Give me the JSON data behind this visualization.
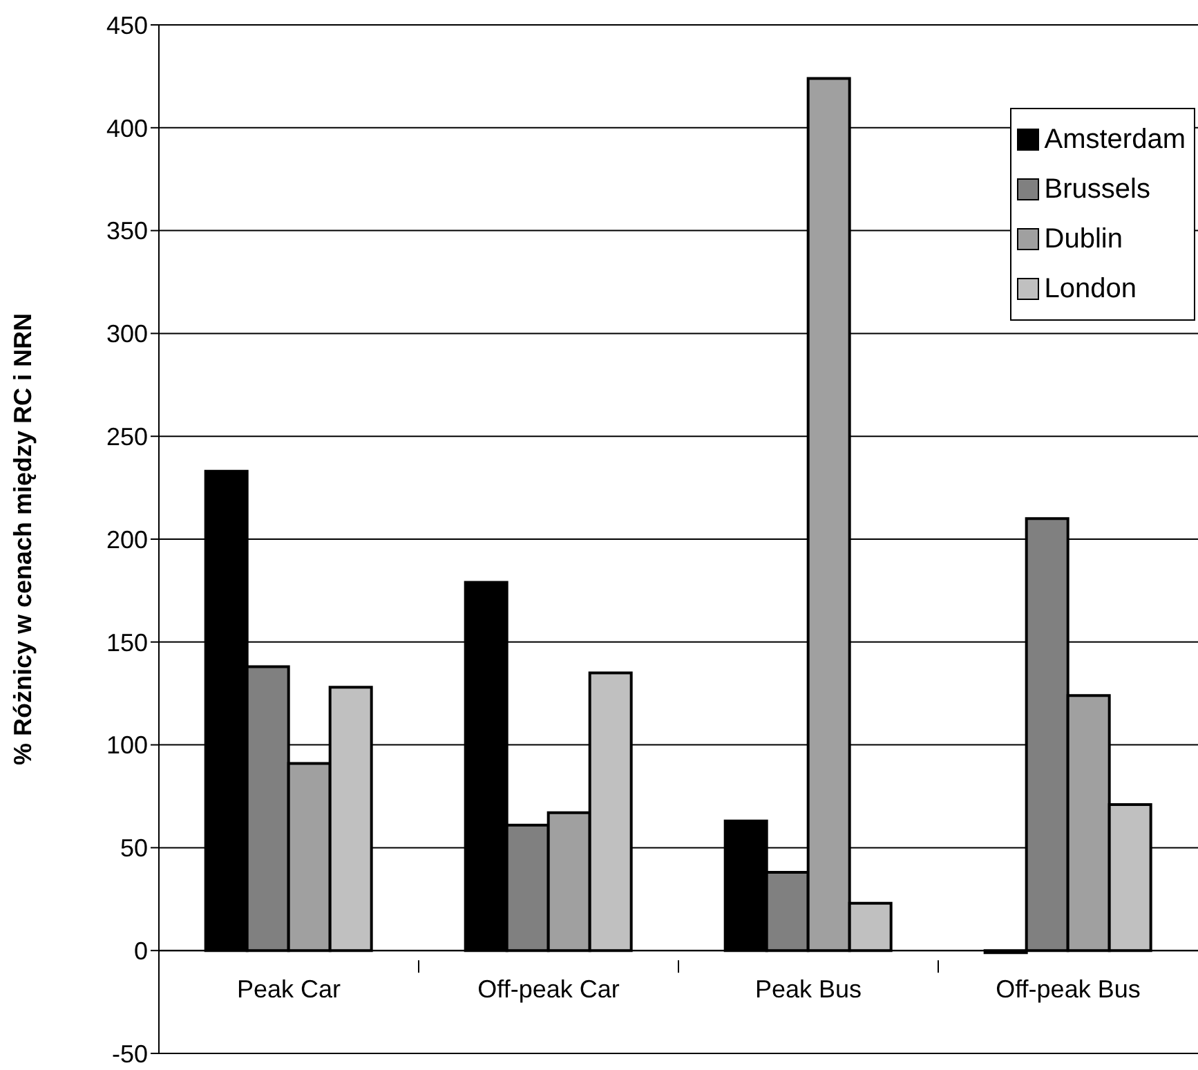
{
  "chart_data": {
    "type": "bar",
    "ylabel": "% Różnicy w cenach między RC i NRN",
    "categories": [
      "Peak Car",
      "Off-peak Car",
      "Peak Bus",
      "Off-peak Bus"
    ],
    "series": [
      {
        "name": "Amsterdam",
        "color": "#000000",
        "values": [
          233,
          179,
          63,
          -1
        ]
      },
      {
        "name": "Brussels",
        "color": "#808080",
        "values": [
          138,
          61,
          38,
          210
        ]
      },
      {
        "name": "Dublin",
        "color": "#a0a0a0",
        "values": [
          91,
          67,
          424,
          124
        ]
      },
      {
        "name": "London",
        "color": "#c0c0c0",
        "values": [
          128,
          135,
          23,
          71
        ]
      }
    ],
    "ylim": [
      -50,
      450
    ],
    "yticks": [
      -50,
      0,
      50,
      100,
      150,
      200,
      250,
      300,
      350,
      400,
      450
    ],
    "grid": "y",
    "legend": "top right"
  }
}
